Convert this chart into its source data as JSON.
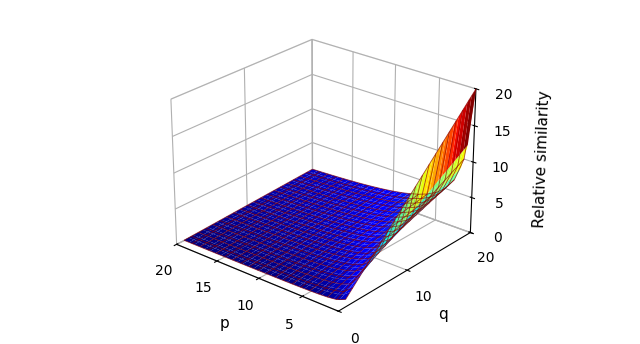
{
  "title": "",
  "xlabel": "p",
  "ylabel": "q",
  "zlabel": "Relative similarity",
  "p_range": [
    1,
    20
  ],
  "q_range": [
    1,
    20
  ],
  "zlim": [
    0,
    20
  ],
  "p_ticks": [
    5,
    10,
    15,
    20
  ],
  "q_ticks": [
    0,
    10,
    20
  ],
  "z_ticks": [
    0,
    5,
    10,
    15,
    20
  ],
  "n_points": 30,
  "elev": 25,
  "azim": -50,
  "cmap": "jet",
  "surface_alpha": 1.0,
  "wireframe_color": "#8B0000",
  "wireframe_linewidth": 0.6,
  "background_color": "#ffffff",
  "pane_color": "#f0f0f0"
}
